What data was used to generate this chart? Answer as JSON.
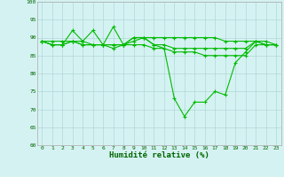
{
  "x": [
    0,
    1,
    2,
    3,
    4,
    5,
    6,
    7,
    8,
    9,
    10,
    11,
    12,
    13,
    14,
    15,
    16,
    17,
    18,
    19,
    20,
    21,
    22,
    23
  ],
  "line1": [
    89,
    88,
    88,
    92,
    89,
    92,
    88,
    93,
    88,
    90,
    90,
    88,
    87,
    73,
    68,
    72,
    72,
    75,
    74,
    83,
    86,
    89,
    88,
    88
  ],
  "line2": [
    89,
    88,
    88,
    89,
    89,
    88,
    88,
    88,
    88,
    90,
    90,
    88,
    88,
    87,
    87,
    87,
    87,
    87,
    87,
    87,
    87,
    89,
    88,
    88
  ],
  "line3": [
    89,
    88,
    88,
    89,
    88,
    88,
    88,
    88,
    88,
    89,
    90,
    90,
    90,
    90,
    90,
    90,
    90,
    90,
    89,
    89,
    89,
    89,
    89,
    88
  ],
  "line4": [
    89,
    89,
    89,
    89,
    88,
    88,
    88,
    87,
    88,
    88,
    88,
    87,
    87,
    86,
    86,
    86,
    85,
    85,
    85,
    85,
    85,
    88,
    88,
    88
  ],
  "line_color": "#00bb00",
  "bg_color": "#d5f2f2",
  "grid_color": "#b0d8d8",
  "xlabel": "Humidité relative (%)",
  "xlabel_color": "#006600",
  "tick_color": "#006600",
  "ylim": [
    60,
    100
  ],
  "xlim_min": -0.5,
  "xlim_max": 23.5,
  "yticks": [
    60,
    65,
    70,
    75,
    80,
    85,
    90,
    95,
    100
  ],
  "xticks": [
    0,
    1,
    2,
    3,
    4,
    5,
    6,
    7,
    8,
    9,
    10,
    11,
    12,
    13,
    14,
    15,
    16,
    17,
    18,
    19,
    20,
    21,
    22,
    23
  ]
}
